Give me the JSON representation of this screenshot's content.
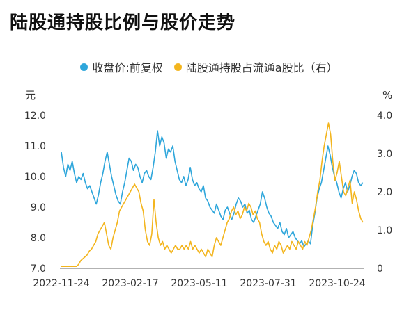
{
  "chart_data": {
    "type": "line",
    "title": "陆股通持股比例与股价走势",
    "left_unit": "元",
    "right_unit": "%",
    "x_labels": [
      "2022-11-24",
      "2023-02-17",
      "2023-05-11",
      "2023-07-31",
      "2023-10-24"
    ],
    "left_ylim": [
      7.0,
      12.0
    ],
    "left_ticks": [
      "7.0",
      "8.0",
      "9.0",
      "10.0",
      "11.0",
      "12.0"
    ],
    "right_ylim": [
      0,
      4.0
    ],
    "right_ticks": [
      "0",
      "1.0",
      "2.0",
      "3.0",
      "4.0"
    ],
    "legend_position": "top-center",
    "grid": false,
    "series": [
      {
        "name": "收盘价:前复权",
        "color": "#2ea6db",
        "axis": "left",
        "values": [
          10.8,
          10.3,
          10.0,
          10.4,
          10.2,
          10.5,
          10.1,
          9.8,
          10.0,
          9.9,
          10.1,
          9.8,
          9.6,
          9.7,
          9.5,
          9.3,
          9.1,
          9.4,
          9.8,
          10.1,
          10.5,
          10.8,
          10.4,
          10.0,
          9.7,
          9.4,
          9.2,
          9.1,
          9.5,
          9.8,
          10.2,
          10.6,
          10.5,
          10.2,
          10.4,
          10.3,
          10.0,
          9.8,
          10.1,
          10.2,
          10.0,
          9.9,
          10.3,
          10.8,
          11.5,
          11.0,
          11.3,
          11.1,
          10.6,
          10.9,
          10.8,
          11.0,
          10.5,
          10.2,
          9.9,
          9.8,
          10.0,
          9.7,
          9.9,
          10.3,
          9.9,
          9.7,
          9.8,
          9.6,
          9.5,
          9.7,
          9.3,
          9.2,
          9.0,
          8.9,
          8.8,
          9.1,
          8.9,
          8.7,
          8.6,
          8.9,
          9.0,
          8.8,
          8.6,
          8.8,
          9.1,
          9.3,
          9.2,
          9.0,
          9.1,
          8.8,
          8.9,
          8.6,
          8.5,
          8.7,
          8.9,
          9.1,
          9.5,
          9.3,
          9.0,
          8.8,
          8.7,
          8.5,
          8.4,
          8.3,
          8.5,
          8.2,
          8.1,
          8.3,
          8.0,
          8.1,
          8.2,
          8.0,
          7.9,
          7.8,
          7.9,
          7.7,
          7.8,
          7.9,
          7.8,
          8.4,
          8.8,
          9.3,
          9.6,
          9.8,
          10.2,
          10.6,
          11.0,
          10.7,
          10.3,
          10.0,
          9.8,
          9.5,
          9.3,
          9.6,
          9.8,
          9.5,
          9.7,
          10.0,
          10.2,
          10.1,
          9.8,
          9.7,
          9.8
        ]
      },
      {
        "name": "陆股通持股占流通a股比（右）",
        "color": "#f3b51e",
        "axis": "right",
        "values": [
          0.05,
          0.05,
          0.05,
          0.05,
          0.05,
          0.05,
          0.05,
          0.05,
          0.1,
          0.2,
          0.25,
          0.3,
          0.35,
          0.45,
          0.5,
          0.6,
          0.7,
          0.9,
          1.0,
          1.1,
          1.2,
          0.9,
          0.6,
          0.5,
          0.8,
          1.0,
          1.2,
          1.5,
          1.6,
          1.7,
          1.8,
          1.9,
          2.0,
          2.1,
          2.2,
          2.1,
          2.0,
          1.7,
          1.5,
          1.0,
          0.7,
          0.6,
          0.9,
          1.8,
          1.2,
          0.8,
          0.6,
          0.7,
          0.5,
          0.6,
          0.5,
          0.4,
          0.5,
          0.6,
          0.5,
          0.5,
          0.6,
          0.5,
          0.6,
          0.5,
          0.7,
          0.5,
          0.6,
          0.5,
          0.4,
          0.5,
          0.4,
          0.3,
          0.5,
          0.4,
          0.3,
          0.6,
          0.8,
          0.7,
          0.6,
          0.8,
          1.0,
          1.2,
          1.3,
          1.5,
          1.6,
          1.4,
          1.5,
          1.3,
          1.4,
          1.6,
          1.5,
          1.7,
          1.6,
          1.4,
          1.5,
          1.3,
          1.2,
          0.9,
          0.7,
          0.6,
          0.7,
          0.5,
          0.4,
          0.6,
          0.5,
          0.7,
          0.6,
          0.4,
          0.5,
          0.6,
          0.5,
          0.7,
          0.6,
          0.5,
          0.7,
          0.6,
          0.5,
          0.7,
          0.6,
          0.8,
          1.0,
          1.3,
          1.6,
          2.0,
          2.3,
          2.8,
          3.2,
          3.5,
          3.8,
          3.5,
          2.8,
          2.3,
          2.5,
          2.8,
          2.4,
          2.0,
          1.9,
          2.1,
          2.3,
          1.7,
          2.0,
          1.8,
          1.5,
          1.3,
          1.2
        ]
      }
    ]
  }
}
